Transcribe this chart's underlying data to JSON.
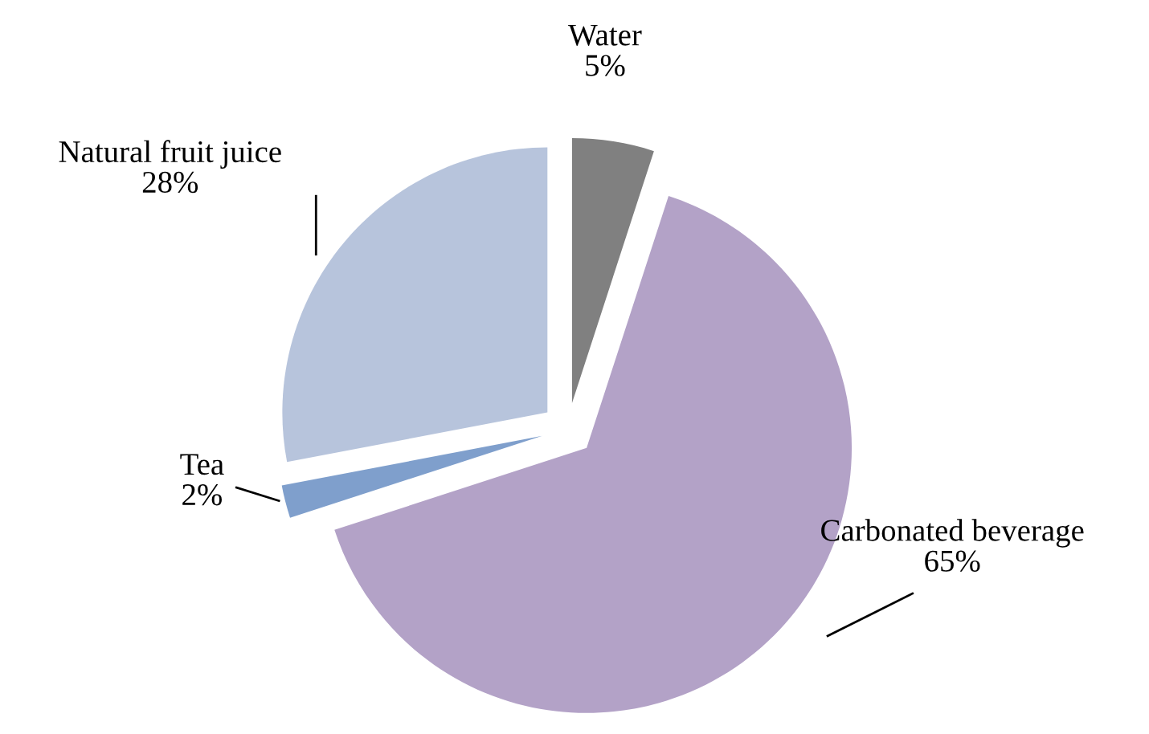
{
  "chart_data": {
    "type": "pie",
    "categories": [
      "Water",
      "Carbonated beverage",
      "Tea",
      "Natural fruit juice"
    ],
    "values": [
      5,
      65,
      2,
      28
    ],
    "value_labels": [
      "5%",
      "65%",
      "2%",
      "28%"
    ],
    "colors": [
      "#808080",
      "#b3a2c7",
      "#7f9fcc",
      "#b7c4dc"
    ],
    "legend": false
  }
}
